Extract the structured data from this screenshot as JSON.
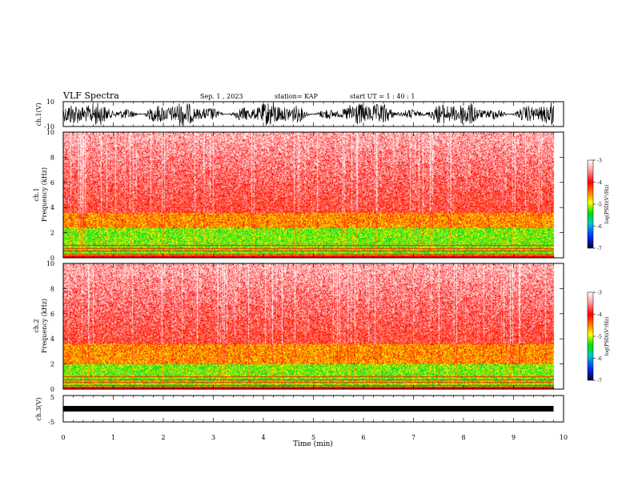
{
  "header": {
    "title": "VLF Spectra",
    "date": "Sep. 1 , 2023",
    "station": "station= KAP",
    "start": "start UT =  1 : 40 : 1"
  },
  "chart_data": [
    {
      "type": "line",
      "panel": "ch1-waveform",
      "ylabel": "ch.1(V)",
      "ylim": [
        -10,
        10
      ],
      "yticks": [
        "10",
        "-10"
      ],
      "xlim": [
        0,
        10
      ],
      "data_extent_min": 9.8,
      "color": "#000000"
    },
    {
      "type": "heatmap",
      "panel": "ch1-spectrogram",
      "ylabel": "ch.1\nFrequency  (kHz)",
      "ylim": [
        0,
        10
      ],
      "yticks": [
        "10",
        "8",
        "6",
        "4",
        "2",
        "0"
      ],
      "xlim": [
        0,
        10
      ],
      "colorbar": {
        "label": "log(PSD)(V²/Hz)",
        "range": [
          -7,
          -3
        ],
        "ticks": [
          "-3",
          "-4",
          "-5",
          "-6",
          "-7"
        ]
      }
    },
    {
      "type": "heatmap",
      "panel": "ch2-spectrogram",
      "ylabel": "ch.2\nFrequency  (kHz)",
      "ylim": [
        0,
        10
      ],
      "yticks": [
        "10",
        "8",
        "6",
        "4",
        "2",
        "0"
      ],
      "xlim": [
        0,
        10
      ],
      "colorbar": {
        "label": "log(PSD)(V²/Hz)",
        "range": [
          -7,
          -3
        ],
        "ticks": [
          "-3",
          "-4",
          "-5",
          "-6",
          "-7"
        ]
      }
    },
    {
      "type": "line",
      "panel": "ch3-waveform",
      "ylabel": "ch.3(V)",
      "ylim": [
        -5,
        5
      ],
      "yticks": [
        "5",
        "-5"
      ],
      "xlim": [
        0,
        10
      ],
      "xlabel": "Time  (min)",
      "xticks": [
        "0",
        "1",
        "2",
        "3",
        "4",
        "5",
        "6",
        "7",
        "8",
        "9",
        "10"
      ],
      "color": "#000000"
    }
  ]
}
